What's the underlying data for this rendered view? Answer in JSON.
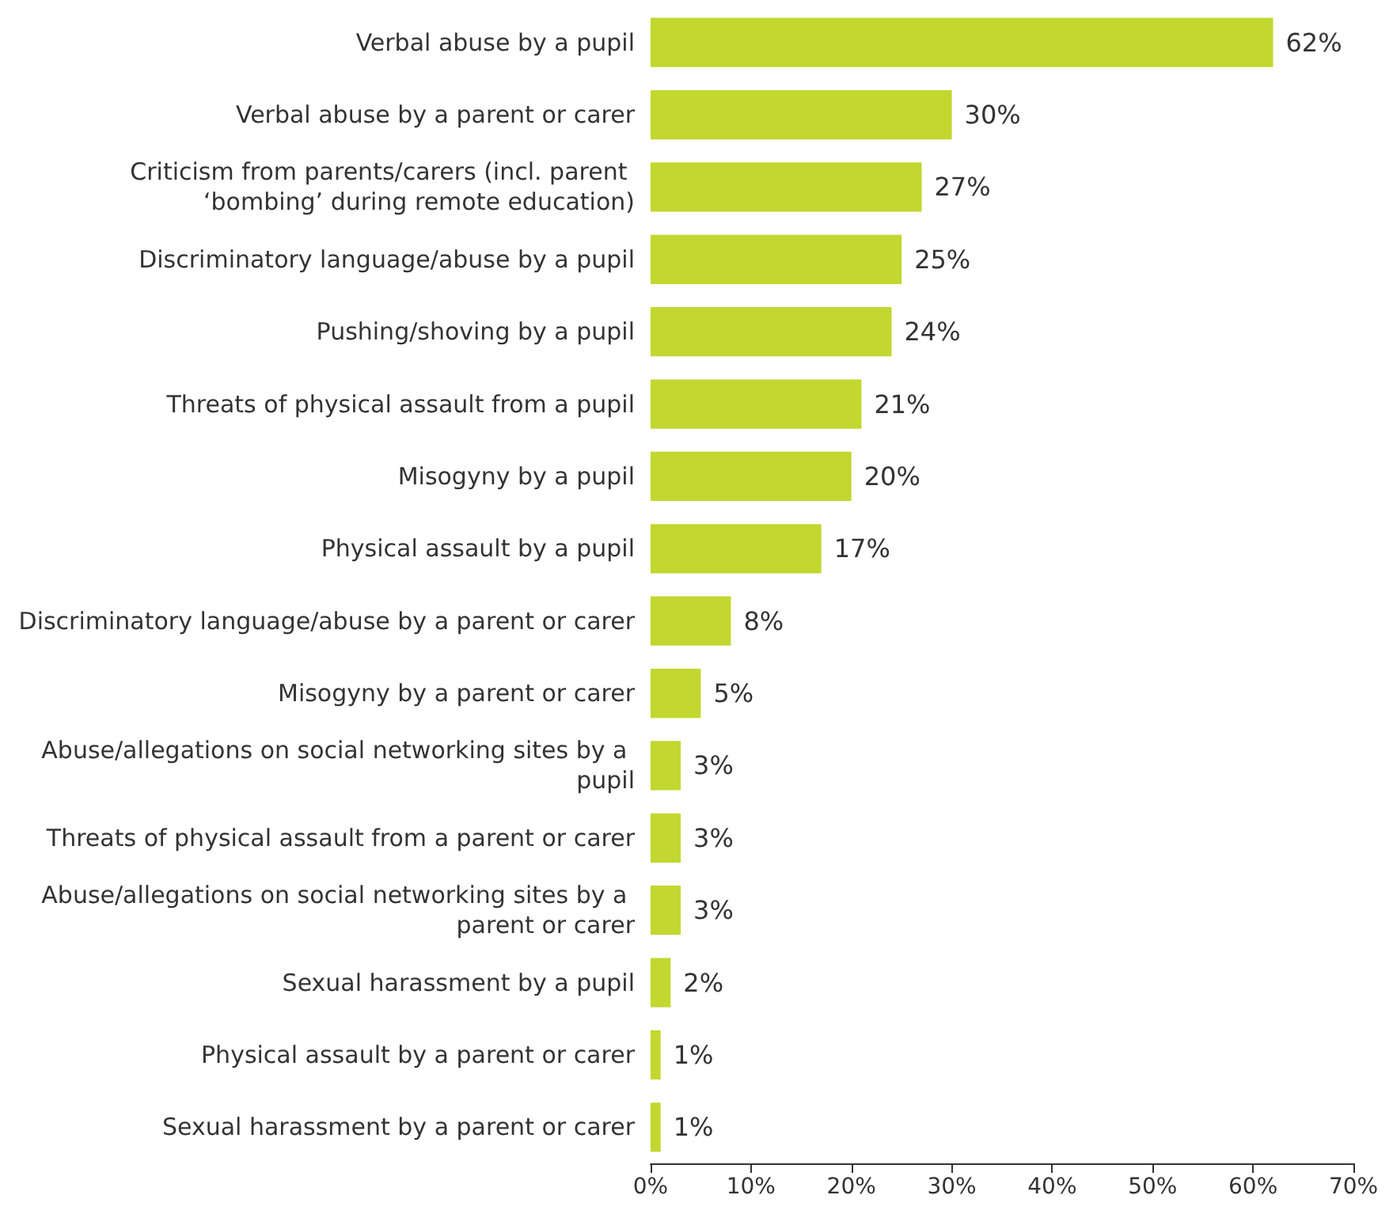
{
  "chart_data": {
    "type": "bar",
    "orientation": "horizontal",
    "categories": [
      "Verbal abuse by a pupil",
      "Verbal abuse by a parent or carer",
      "Criticism from parents/carers (incl. parent ‘bombing’ during remote education)",
      "Discriminatory language/abuse by a pupil",
      "Pushing/shoving by a pupil",
      "Threats of physical assault from a pupil",
      "Misogyny by a pupil",
      "Physical assault by a pupil",
      "Discriminatory language/abuse by a parent or carer",
      "Misogyny by a parent or carer",
      "Abuse/allegations on social networking sites by a pupil",
      "Threats of physical assault from a parent or carer",
      "Abuse/allegations on social networking sites by a parent or carer",
      "Sexual harassment by a pupil",
      "Physical assault by a parent or carer",
      "Sexual harassment by a parent or carer"
    ],
    "values": [
      62,
      30,
      27,
      25,
      24,
      21,
      20,
      17,
      8,
      5,
      3,
      3,
      3,
      2,
      1,
      1
    ],
    "value_labels": [
      "62%",
      "30%",
      "27%",
      "25%",
      "24%",
      "21%",
      "20%",
      "17%",
      "8%",
      "5%",
      "3%",
      "3%",
      "3%",
      "2%",
      "1%",
      "1%"
    ],
    "color": "#c2d72f",
    "xlim": [
      0,
      70
    ],
    "xticks": [
      {
        "value": 0,
        "label": "0%"
      },
      {
        "value": 10,
        "label": "10%"
      },
      {
        "value": 20,
        "label": "20%"
      },
      {
        "value": 30,
        "label": "30%"
      },
      {
        "value": 40,
        "label": "40%"
      },
      {
        "value": 50,
        "label": "50%"
      },
      {
        "value": 60,
        "label": "60%"
      },
      {
        "value": 70,
        "label": "70%"
      }
    ],
    "tick_labels": true
  }
}
